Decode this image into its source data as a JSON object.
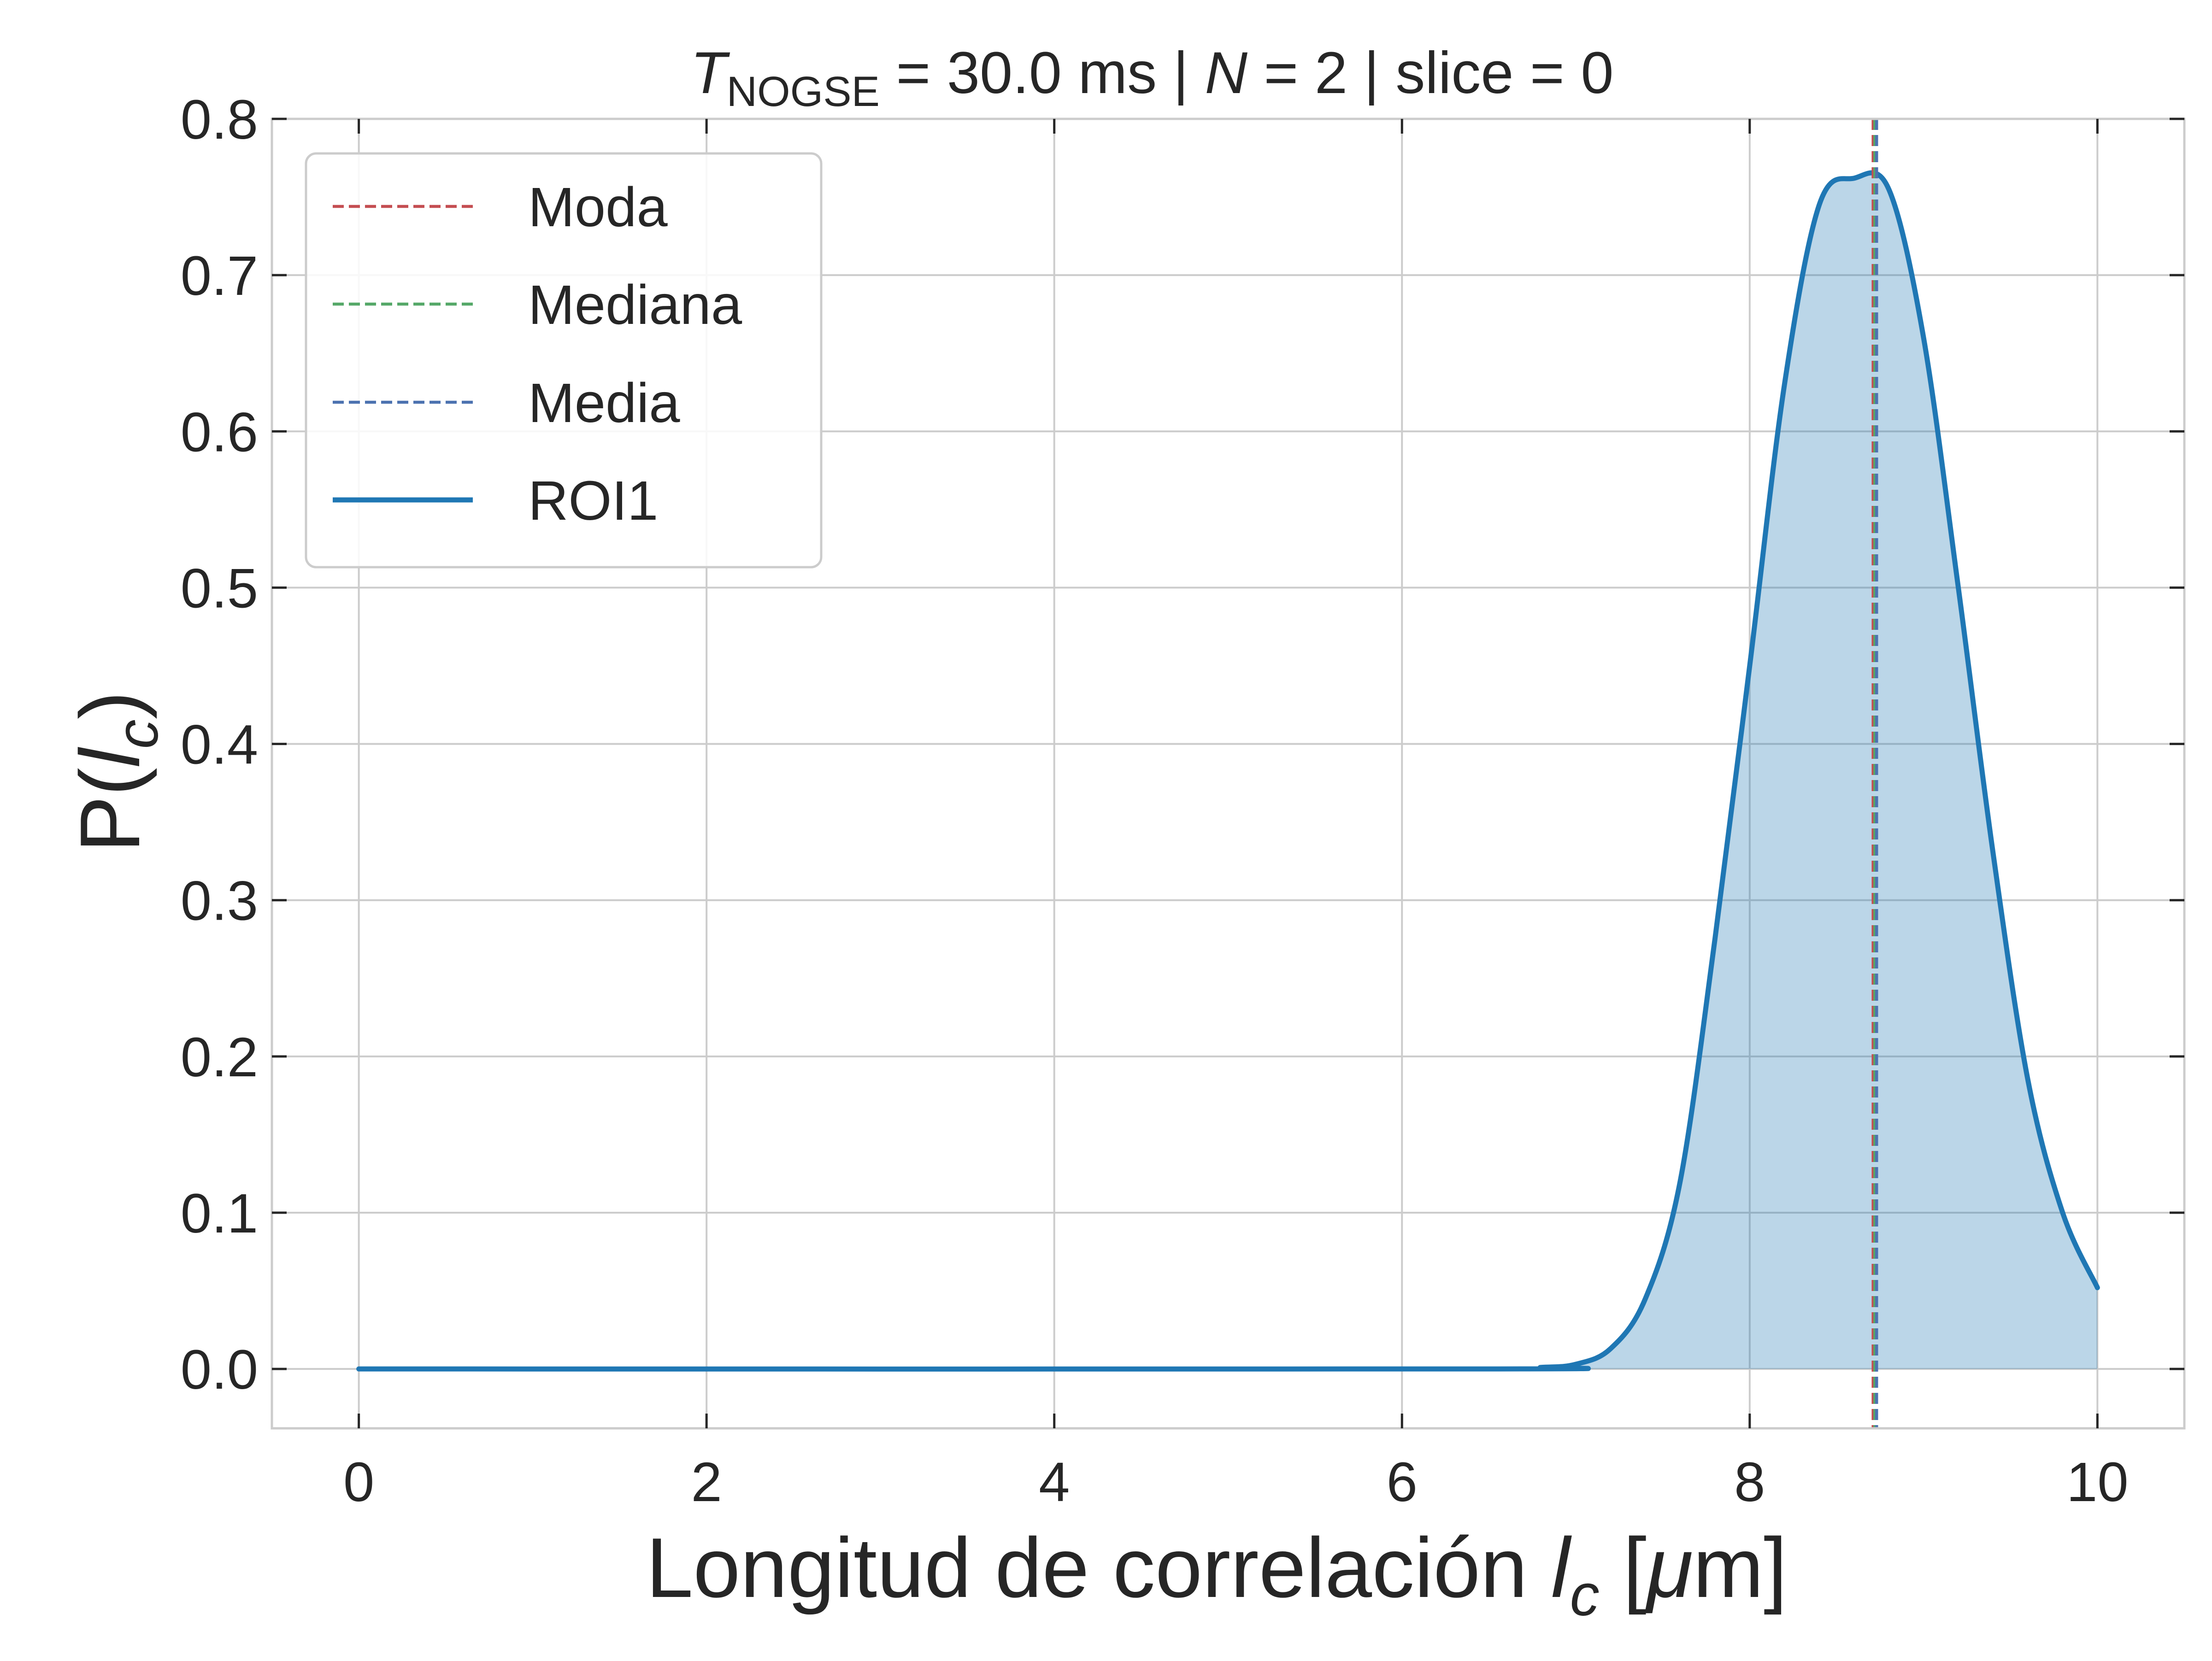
{
  "chart_data": {
    "type": "area",
    "title": {
      "part1": "T",
      "part1_sub": "NOGSE",
      "part2": " = 30.0 ms  |  ",
      "part3": "N",
      "part4": " = 2 | slice = 0"
    },
    "xlabel": {
      "text": "Longitud de correlación ",
      "var": "l",
      "var_sub": "c",
      "open": " [",
      "unit_mu": "μ",
      "unit_rest": "m]"
    },
    "ylabel": {
      "prefix": "P(",
      "var": "l",
      "var_sub": "c",
      "suffix": ")"
    },
    "xlim": [
      -0.5,
      10.5
    ],
    "ylim": [
      -0.038,
      0.8
    ],
    "xticks": [
      0,
      2,
      4,
      6,
      8,
      10
    ],
    "xtick_labels": [
      "0",
      "2",
      "4",
      "6",
      "8",
      "10"
    ],
    "yticks": [
      0.0,
      0.1,
      0.2,
      0.3,
      0.4,
      0.5,
      0.6,
      0.7,
      0.8
    ],
    "ytick_labels": [
      "0.0",
      "0.1",
      "0.2",
      "0.3",
      "0.4",
      "0.5",
      "0.6",
      "0.7",
      "0.8"
    ],
    "grid": true,
    "legend_position": "top-left",
    "series": [
      {
        "name": "ROI1",
        "color": "#1f77b4",
        "fill_color": "#1f77b4",
        "x": [
          0,
          6.5,
          6.8,
          7.0,
          7.2,
          7.4,
          7.6,
          7.8,
          8.0,
          8.2,
          8.4,
          8.6,
          8.8,
          9.0,
          9.2,
          9.4,
          9.6,
          9.8,
          10.0
        ],
        "y": [
          0.0,
          0.0,
          0.001,
          0.003,
          0.013,
          0.045,
          0.12,
          0.275,
          0.45,
          0.63,
          0.745,
          0.762,
          0.755,
          0.66,
          0.5,
          0.33,
          0.185,
          0.1,
          0.052
        ]
      }
    ],
    "vlines": [
      {
        "name": "Moda",
        "x": 8.71,
        "color": "#c44e52"
      },
      {
        "name": "Mediana",
        "x": 8.72,
        "color": "#55a868"
      },
      {
        "name": "Media",
        "x": 8.73,
        "color": "#4c72b0"
      }
    ]
  }
}
